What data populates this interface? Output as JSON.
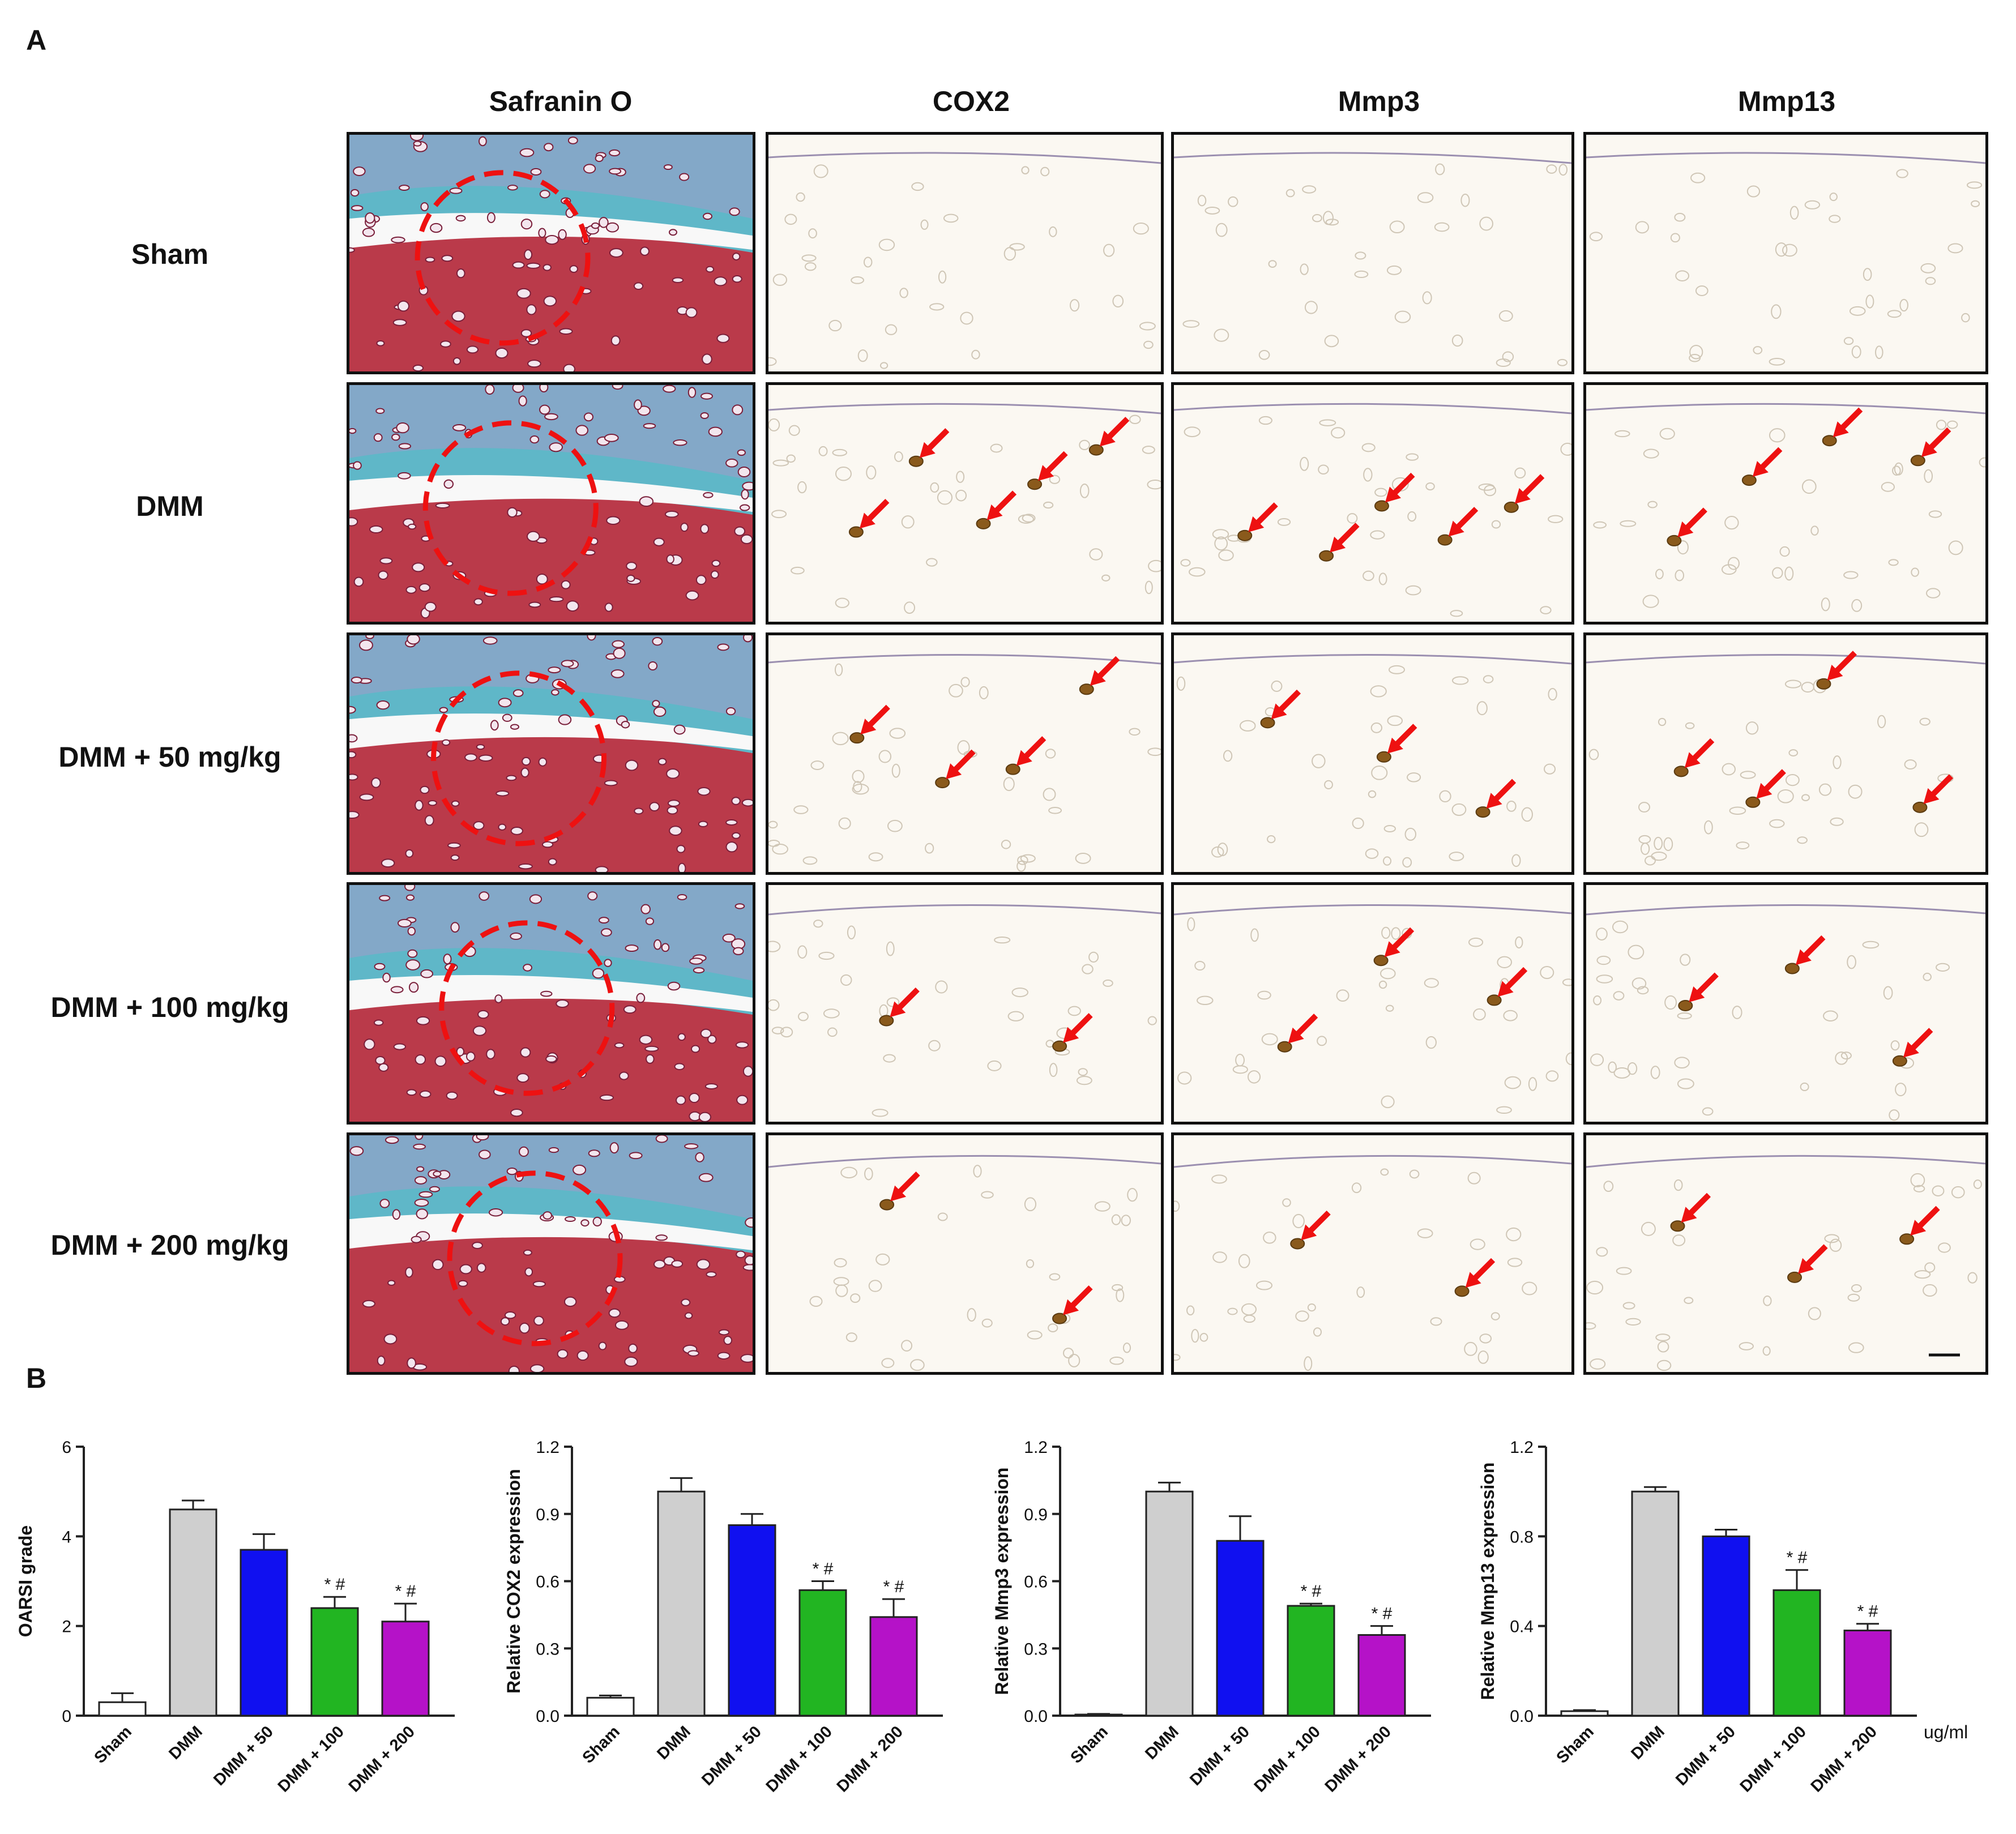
{
  "panel_labels": {
    "a": "A",
    "b": "B"
  },
  "columns": [
    "Safranin O",
    "COX2",
    "Mmp3",
    "Mmp13"
  ],
  "rows": [
    "Sham",
    "DMM",
    "DMM + 50 mg/kg",
    "DMM + 100 mg/kg",
    "DMM + 200 mg/kg"
  ],
  "colors": {
    "Sham": "#ffffff",
    "DMM": "#cfcfcf",
    "DMM + 50": "#1010f0",
    "DMM + 100": "#22b522",
    "DMM + 200": "#b512c8",
    "arrow": "#ee1111",
    "circle": "#ee1111",
    "safranin_blue": "#5fb7c8",
    "safranin_red": "#c42c3c",
    "ihc_stain": "#8a5a1c"
  },
  "ihc_arrow_counts": [
    [
      0,
      0,
      0
    ],
    [
      5,
      5,
      4
    ],
    [
      4,
      3,
      4
    ],
    [
      2,
      3,
      3
    ],
    [
      2,
      2,
      3
    ]
  ],
  "chart_data": [
    {
      "type": "bar",
      "categories": [
        "Sham",
        "DMM",
        "DMM + 50",
        "DMM + 100",
        "DMM + 200"
      ],
      "values": [
        0.3,
        4.6,
        3.7,
        2.4,
        2.1
      ],
      "errors": [
        0.2,
        0.2,
        0.35,
        0.25,
        0.4
      ],
      "annotations": [
        "",
        "",
        "",
        "* #",
        "* #"
      ],
      "title": "",
      "xlabel": "",
      "ylabel": "OARSI grade",
      "ylim": [
        0,
        6
      ],
      "yticks": [
        "0",
        "2",
        "4",
        "6"
      ],
      "unit": ""
    },
    {
      "type": "bar",
      "categories": [
        "Sham",
        "DMM",
        "DMM + 50",
        "DMM + 100",
        "DMM + 200"
      ],
      "values": [
        0.08,
        1.0,
        0.85,
        0.56,
        0.44
      ],
      "errors": [
        0.01,
        0.06,
        0.05,
        0.04,
        0.08
      ],
      "annotations": [
        "",
        "",
        "",
        "* #",
        "* #"
      ],
      "title": "",
      "xlabel": "",
      "ylabel": "Relative COX2 expression",
      "ylim": [
        0,
        1.2
      ],
      "yticks": [
        "0.0",
        "0.3",
        "0.6",
        "0.9",
        "1.2"
      ],
      "unit": ""
    },
    {
      "type": "bar",
      "categories": [
        "Sham",
        "DMM",
        "DMM + 50",
        "DMM + 100",
        "DMM + 200"
      ],
      "values": [
        0.005,
        1.0,
        0.78,
        0.49,
        0.36
      ],
      "errors": [
        0.003,
        0.04,
        0.11,
        0.01,
        0.04
      ],
      "annotations": [
        "",
        "",
        "",
        "* #",
        "* #"
      ],
      "title": "",
      "xlabel": "",
      "ylabel": "Relative Mmp3 expression",
      "ylim": [
        0,
        1.2
      ],
      "yticks": [
        "0.0",
        "0.3",
        "0.6",
        "0.9",
        "1.2"
      ],
      "unit": ""
    },
    {
      "type": "bar",
      "categories": [
        "Sham",
        "DMM",
        "DMM + 50",
        "DMM + 100",
        "DMM + 200"
      ],
      "values": [
        0.02,
        1.0,
        0.8,
        0.56,
        0.38
      ],
      "errors": [
        0.005,
        0.02,
        0.03,
        0.09,
        0.03
      ],
      "annotations": [
        "",
        "",
        "",
        "* #",
        "* #"
      ],
      "title": "",
      "xlabel": "",
      "ylabel": "Relative Mmp13 expression",
      "ylim": [
        0,
        1.2
      ],
      "yticks": [
        "0.0",
        "0.4",
        "0.8",
        "1.2"
      ],
      "unit": "ug/ml"
    }
  ]
}
